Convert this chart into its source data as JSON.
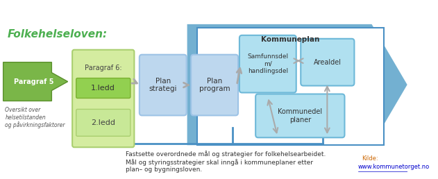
{
  "bg_color": "#ffffff",
  "title_folkehelseloven": "Folkehelseloven:",
  "title_color": "#4CAF50",
  "paragraf5_text": "Paragraf 5",
  "paragraf5_color": "#7AB648",
  "paragraf5_dark": "#5A8F2C",
  "oversikt_text": "Oversikt over\nhelsetilstanden\nog påvirkningsfaktorer",
  "paragraf6_label": "Paragraf 6:",
  "ledd1_text": "1.ledd",
  "ledd2_text": "2.ledd",
  "paragraf6_box_color": "#D4ECA0",
  "ledd1_color": "#92D050",
  "ledd2_color": "#D4ECA0",
  "plan_strategi_text": "Plan\nstrategi",
  "plan_program_text": "Plan\nprogram",
  "plan_box_color": "#BDD7EE",
  "plan_box_dark": "#9DC3E6",
  "kommuneplan_label": "Kommuneplan",
  "kommuneplan_bg": "#BDD7EE",
  "big_arrow_color": "#5BA3C9",
  "samfunnsdel_text": "Samfunnsdel\nm/\nhandlingsdel",
  "arealdel_text": "Arealdel",
  "kommunedel_text": "Kommunedel\nplaner",
  "inner_box_color": "#B0E0F0",
  "inner_box_dark": "#6DB8D8",
  "bottom_text": "Fastsette overordnede mål og strategier for folkehelsearbeidet.\nMål og styringsstrategier skal inngå i kommuneplaner etter\nplan– og bygningsloven.",
  "kilde_text": "Kilde:\nwww.kommunetorget.no",
  "kilde_color": "#CC6600",
  "link_color": "#0000CC"
}
